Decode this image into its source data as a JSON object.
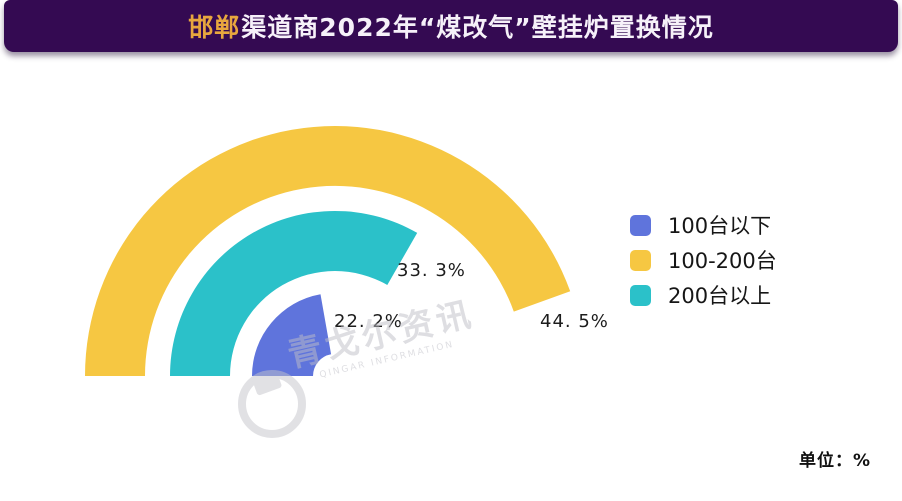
{
  "header": {
    "title_highlight": "邯郸",
    "title_rest": "渠道商2022年“煤改气”壁挂炉置换情况",
    "bar_color": "#340a52",
    "highlight_color": "#e8a73e",
    "text_color": "#f6f1f9"
  },
  "chart_data": {
    "type": "pie",
    "variant": "semicircular radial-bar (half-donut concentric rings, 1% = 3.6deg sweep from left baseline clockwise)",
    "title": "邯郸渠道商2022年“煤改气”壁挂炉置换情况",
    "unit": "%",
    "legend_position": "right",
    "series": [
      {
        "name": "100台以下",
        "value": 22.2,
        "display_label": "22. 2%",
        "color": "#5f74dc",
        "ring": "inner"
      },
      {
        "name": "100-200台",
        "value": 44.5,
        "display_label": "44. 5%",
        "color": "#f6c742",
        "ring": "outer"
      },
      {
        "name": "200台以上",
        "value": 33.3,
        "display_label": "33. 3%",
        "color": "#2bc1c9",
        "ring": "middle"
      }
    ]
  },
  "legend": {
    "items": [
      {
        "label": "100台以下",
        "color": "#5f74dc"
      },
      {
        "label": "100-200台",
        "color": "#f6c742"
      },
      {
        "label": "200台以上",
        "color": "#2bc1c9"
      }
    ]
  },
  "footer": {
    "unit_label": "单位：%"
  },
  "watermark": {
    "text": "青戈尔资讯",
    "subtext": "QINGAR INFORMATION",
    "logo": "globe-icon"
  }
}
